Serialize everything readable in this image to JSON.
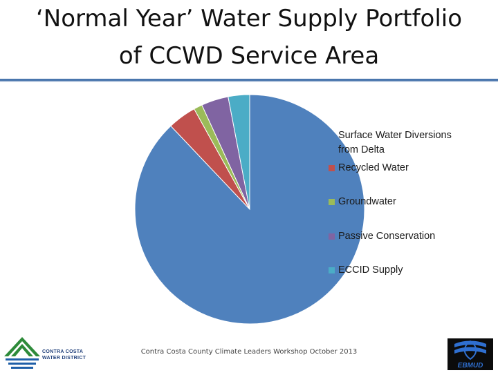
{
  "title": {
    "line1": "‘Normal Year’ Water Supply Portfolio",
    "line2": "of CCWD Service Area"
  },
  "chart_data": {
    "type": "pie",
    "title": "‘Normal Year’ Water Supply Portfolio of CCWD Service Area",
    "start_angle_deg": 0,
    "direction": "clockwise",
    "legend_position": "right",
    "series": [
      {
        "name": "",
        "labels": [
          "Surface Water Diversions from Delta",
          "Recycled Water",
          "Groundwater",
          "Passive Conservation",
          "ECCID Supply"
        ],
        "values": [
          87.5,
          4.0,
          1.2,
          3.8,
          3.0
        ],
        "colors": [
          "#4f81bd",
          "#c0504d",
          "#9bbb59",
          "#8064a2",
          "#4bacc6"
        ]
      }
    ]
  },
  "legend": [
    {
      "label_line1": "Surface Water Diversions",
      "label_line2": "from Delta",
      "color": "#4f81bd"
    },
    {
      "label_line1": "Recycled Water",
      "label_line2": "",
      "color": "#c0504d"
    },
    {
      "label_line1": "Groundwater",
      "label_line2": "",
      "color": "#9bbb59"
    },
    {
      "label_line1": "Passive Conservation",
      "label_line2": "",
      "color": "#8064a2"
    },
    {
      "label_line1": "ECCID Supply",
      "label_line2": "",
      "color": "#4bacc6"
    }
  ],
  "footer": "Contra Costa County Climate Leaders Workshop October 2013",
  "logos": {
    "ccwd": {
      "line1": "CONTRA COSTA",
      "line2": "WATER DISTRICT",
      "icon": "ccwd-logo-icon"
    },
    "ebmud": {
      "text": "EBMUD",
      "icon": "ebmud-logo-icon"
    }
  }
}
